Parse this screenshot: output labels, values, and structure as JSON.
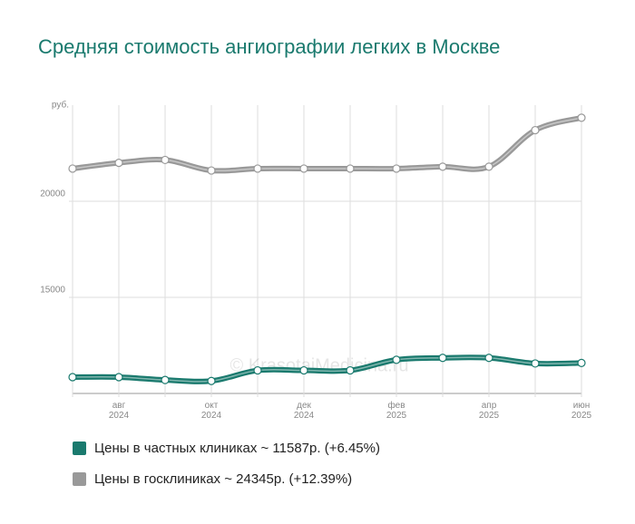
{
  "chart_data": {
    "type": "line",
    "title": "Средняя стоимость ангиографии легких в Москве",
    "y_label": "руб.",
    "watermark": "© KrasotaiMedicina.ru",
    "categories": [
      null,
      "авг\n2024",
      null,
      "окт\n2024",
      null,
      "дек\n2024",
      null,
      "фев\n2025",
      null,
      "апр\n2025",
      null,
      "июн\n2025"
    ],
    "ylim": [
      10000,
      25000
    ],
    "yticks": [
      15000,
      20000
    ],
    "grid": true,
    "series": [
      {
        "name": "Цены в частных клиниках ~ 11587р. (+6.45%)",
        "color": "#1a7a6e",
        "values": [
          10850,
          10850,
          10700,
          10650,
          11200,
          11200,
          11200,
          11750,
          11850,
          11850,
          11560,
          11587
        ]
      },
      {
        "name": "Цены в госклиниках ~ 24345р. (+12.39%)",
        "color": "#999999",
        "values": [
          21700,
          22000,
          22150,
          21600,
          21700,
          21700,
          21700,
          21700,
          21800,
          21800,
          23700,
          24345
        ]
      }
    ]
  }
}
